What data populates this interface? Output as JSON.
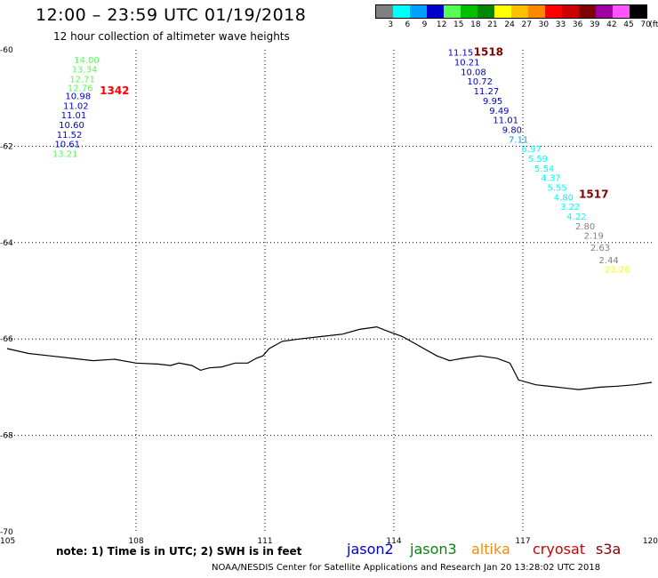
{
  "header": {
    "title": "12:00 – 23:59 UTC 01/19/2018",
    "subtitle": "12 hour collection of altimeter wave heights"
  },
  "legend": {
    "unit": "(ft)",
    "bins": [
      {
        "label": "3",
        "color": "#808080"
      },
      {
        "label": "6",
        "color": "#00ffff"
      },
      {
        "label": "9",
        "color": "#00a0ff"
      },
      {
        "label": "12",
        "color": "#0000cc"
      },
      {
        "label": "15",
        "color": "#55ff55"
      },
      {
        "label": "18",
        "color": "#00c000"
      },
      {
        "label": "21",
        "color": "#008800"
      },
      {
        "label": "24",
        "color": "#ffff00"
      },
      {
        "label": "27",
        "color": "#ffc000"
      },
      {
        "label": "30",
        "color": "#ff8800"
      },
      {
        "label": "33",
        "color": "#ff0000"
      },
      {
        "label": "36",
        "color": "#cc0000"
      },
      {
        "label": "39",
        "color": "#800000"
      },
      {
        "label": "42",
        "color": "#a000a0"
      },
      {
        "label": "45",
        "color": "#ff55ff"
      },
      {
        "label": "70",
        "color": "#000000"
      }
    ]
  },
  "map": {
    "lon_range": [
      105,
      120
    ],
    "lat_range": [
      -60,
      -70
    ],
    "lon_ticks": [
      "105",
      "108",
      "111",
      "114",
      "117",
      "120"
    ],
    "lat_ticks": [
      "-60",
      "-62",
      "-64",
      "-66",
      "-68",
      "-70"
    ],
    "coastline": [
      [
        105.0,
        -66.2
      ],
      [
        105.5,
        -66.3
      ],
      [
        106.0,
        -66.35
      ],
      [
        106.5,
        -66.4
      ],
      [
        107.0,
        -66.45
      ],
      [
        107.5,
        -66.42
      ],
      [
        108.0,
        -66.5
      ],
      [
        108.5,
        -66.52
      ],
      [
        108.8,
        -66.55
      ],
      [
        109.0,
        -66.5
      ],
      [
        109.3,
        -66.55
      ],
      [
        109.5,
        -66.65
      ],
      [
        109.7,
        -66.6
      ],
      [
        110.0,
        -66.58
      ],
      [
        110.3,
        -66.5
      ],
      [
        110.6,
        -66.5
      ],
      [
        110.8,
        -66.4
      ],
      [
        110.95,
        -66.35
      ],
      [
        111.1,
        -66.2
      ],
      [
        111.4,
        -66.05
      ],
      [
        111.8,
        -66.0
      ],
      [
        112.3,
        -65.95
      ],
      [
        112.8,
        -65.9
      ],
      [
        113.2,
        -65.8
      ],
      [
        113.6,
        -65.75
      ],
      [
        113.8,
        -65.82
      ],
      [
        114.2,
        -65.95
      ],
      [
        114.5,
        -66.1
      ],
      [
        114.8,
        -66.25
      ],
      [
        115.0,
        -66.35
      ],
      [
        115.3,
        -66.45
      ],
      [
        115.6,
        -66.4
      ],
      [
        116.0,
        -66.35
      ],
      [
        116.4,
        -66.4
      ],
      [
        116.7,
        -66.5
      ],
      [
        116.9,
        -66.85
      ],
      [
        117.3,
        -66.95
      ],
      [
        117.8,
        -67.0
      ],
      [
        118.3,
        -67.05
      ],
      [
        118.8,
        -67.0
      ],
      [
        119.2,
        -66.98
      ],
      [
        119.6,
        -66.95
      ],
      [
        120.0,
        -66.9
      ]
    ],
    "passes": [
      {
        "id": "1342",
        "label": "1342",
        "label_color": "#ff0000",
        "label_pos": [
          107.5,
          -60.85
        ],
        "points": [
          {
            "lon": 106.85,
            "lat": -60.2,
            "swh": "14.00",
            "color": "#55ff55"
          },
          {
            "lon": 106.8,
            "lat": -60.4,
            "swh": "13.34",
            "color": "#55ff55"
          },
          {
            "lon": 106.75,
            "lat": -60.6,
            "swh": "12.71",
            "color": "#55ff55"
          },
          {
            "lon": 106.7,
            "lat": -60.78,
            "swh": "12.76",
            "color": "#55ff55"
          },
          {
            "lon": 106.65,
            "lat": -60.95,
            "swh": "10.98",
            "color": "#0000cc"
          },
          {
            "lon": 106.6,
            "lat": -61.15,
            "swh": "11.02",
            "color": "#0000cc"
          },
          {
            "lon": 106.55,
            "lat": -61.35,
            "swh": "11.01",
            "color": "#0000cc"
          },
          {
            "lon": 106.5,
            "lat": -61.55,
            "swh": "10.60",
            "color": "#0000cc"
          },
          {
            "lon": 106.45,
            "lat": -61.75,
            "swh": "11.52",
            "color": "#0000cc"
          },
          {
            "lon": 106.4,
            "lat": -61.95,
            "swh": "10.61",
            "color": "#0000cc"
          },
          {
            "lon": 106.35,
            "lat": -62.15,
            "swh": "13.21",
            "color": "#55ff55"
          }
        ]
      },
      {
        "id": "1518",
        "label": "1518",
        "label_color": "#800000",
        "label_pos": [
          116.2,
          -60.05
        ],
        "points": [
          {
            "lon": 115.55,
            "lat": -60.05,
            "swh": "11.15",
            "color": "#0000cc"
          },
          {
            "lon": 115.7,
            "lat": -60.25,
            "swh": "10.21",
            "color": "#0000cc"
          },
          {
            "lon": 115.85,
            "lat": -60.45,
            "swh": "10.08",
            "color": "#0000cc"
          },
          {
            "lon": 116.0,
            "lat": -60.65,
            "swh": "10.72",
            "color": "#0000cc"
          },
          {
            "lon": 116.15,
            "lat": -60.85,
            "swh": "11.27",
            "color": "#0000cc"
          },
          {
            "lon": 116.3,
            "lat": -61.05,
            "swh": "9.95",
            "color": "#0000cc"
          },
          {
            "lon": 116.45,
            "lat": -61.25,
            "swh": "9.49",
            "color": "#0000cc"
          },
          {
            "lon": 116.6,
            "lat": -61.45,
            "swh": "11.01",
            "color": "#0000cc"
          },
          {
            "lon": 116.75,
            "lat": -61.65,
            "swh": "9.80",
            "color": "#0000cc"
          },
          {
            "lon": 116.9,
            "lat": -61.85,
            "swh": "7.11",
            "color": "#00a0ff"
          }
        ]
      },
      {
        "id": "1517",
        "label": "1517",
        "label_color": "#800000",
        "label_pos": [
          118.65,
          -63.0
        ],
        "points": [
          {
            "lon": 117.2,
            "lat": -62.05,
            "swh": "6.97",
            "color": "#00ffff"
          },
          {
            "lon": 117.35,
            "lat": -62.25,
            "swh": "5.59",
            "color": "#00ffff"
          },
          {
            "lon": 117.5,
            "lat": -62.45,
            "swh": "5.54",
            "color": "#00ffff"
          },
          {
            "lon": 117.65,
            "lat": -62.65,
            "swh": "4.37",
            "color": "#00ffff"
          },
          {
            "lon": 117.8,
            "lat": -62.85,
            "swh": "5.55",
            "color": "#00ffff"
          },
          {
            "lon": 117.95,
            "lat": -63.05,
            "swh": "4.80",
            "color": "#00ffff"
          },
          {
            "lon": 118.1,
            "lat": -63.25,
            "swh": "3.22",
            "color": "#00ffff"
          },
          {
            "lon": 118.25,
            "lat": -63.45,
            "swh": "4.22",
            "color": "#00ffff"
          },
          {
            "lon": 118.45,
            "lat": -63.65,
            "swh": "2.80",
            "color": "#808080"
          },
          {
            "lon": 118.65,
            "lat": -63.85,
            "swh": "2.19",
            "color": "#808080"
          },
          {
            "lon": 118.8,
            "lat": -64.1,
            "swh": "2.63",
            "color": "#808080"
          },
          {
            "lon": 119.0,
            "lat": -64.35,
            "swh": "2.44",
            "color": "#808080"
          },
          {
            "lon": 119.2,
            "lat": -64.55,
            "swh": "23.26",
            "color": "#ffff00"
          }
        ]
      }
    ]
  },
  "footer": {
    "note": "note: 1) Time is in UTC; 2) SWH is in feet",
    "satellites": [
      {
        "name": "jason2",
        "color": "#0000cc"
      },
      {
        "name": "jason3",
        "color": "#008800"
      },
      {
        "name": "altika",
        "color": "#ff8800"
      },
      {
        "name": "cryosat",
        "color": "#cc0000"
      },
      {
        "name": "s3a",
        "color": "#800000"
      }
    ],
    "credit": "NOAA/NESDIS Center for Satellite Applications and Research    Jan 20 13:28:02 UTC 2018"
  }
}
